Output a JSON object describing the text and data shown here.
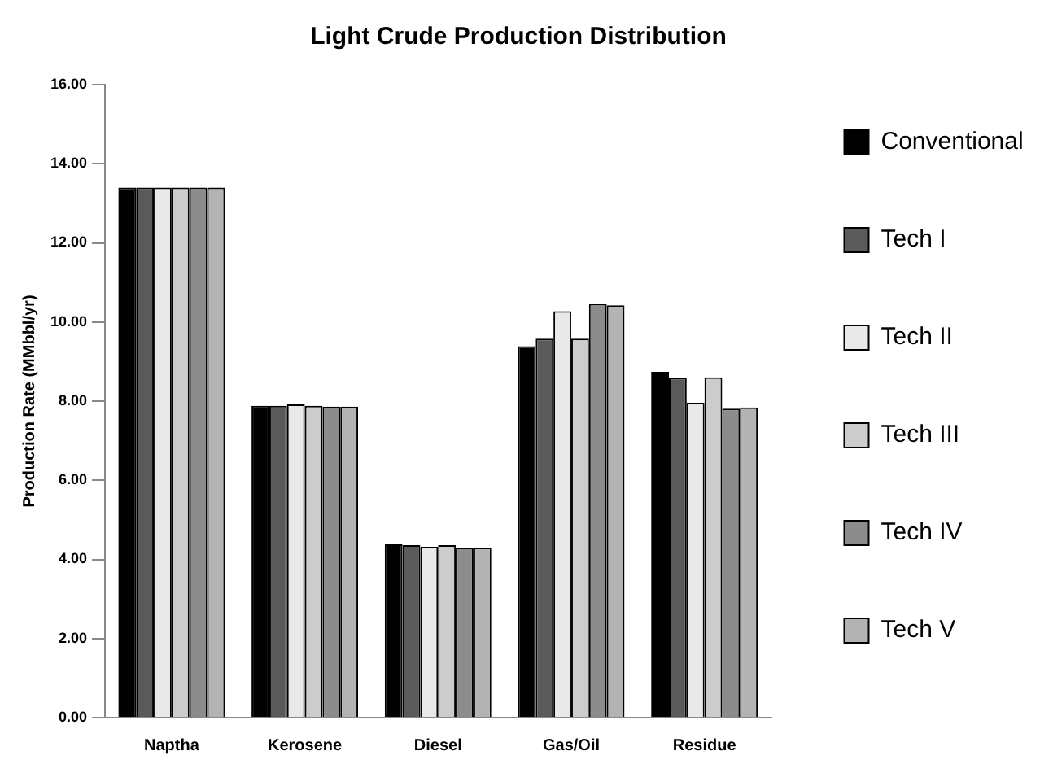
{
  "chart_data": {
    "type": "bar",
    "title": "Light Crude Production Distribution",
    "ylabel": "Production Rate (MMbbl/yr)",
    "categories": [
      "Naptha",
      "Kerosene",
      "Diesel",
      "Gas/Oil",
      "Residue"
    ],
    "series": [
      {
        "name": "Conventional",
        "color": "#000000",
        "values": [
          13.4,
          7.88,
          4.38,
          9.39,
          8.74
        ]
      },
      {
        "name": "Tech I",
        "color": "#5a5a5a",
        "values": [
          13.4,
          7.88,
          4.36,
          9.58,
          8.59
        ]
      },
      {
        "name": "Tech II",
        "color": "#e9e9e9",
        "values": [
          13.4,
          7.92,
          4.32,
          10.27,
          7.96
        ]
      },
      {
        "name": "Tech III",
        "color": "#cccccc",
        "values": [
          13.4,
          7.88,
          4.36,
          9.58,
          8.6
        ]
      },
      {
        "name": "Tech IV",
        "color": "#8c8c8c",
        "values": [
          13.4,
          7.86,
          4.3,
          10.46,
          7.81
        ]
      },
      {
        "name": "Tech V",
        "color": "#b3b3b3",
        "values": [
          13.4,
          7.86,
          4.3,
          10.42,
          7.84
        ]
      }
    ],
    "ylim": [
      0,
      16
    ],
    "yticks": [
      {
        "value": 0,
        "label": "0.00"
      },
      {
        "value": 2,
        "label": "2.00"
      },
      {
        "value": 4,
        "label": "4.00"
      },
      {
        "value": 6,
        "label": "6.00"
      },
      {
        "value": 8,
        "label": "8.00"
      },
      {
        "value": 10,
        "label": "10.00"
      },
      {
        "value": 12,
        "label": "12.00"
      },
      {
        "value": 14,
        "label": "14.00"
      },
      {
        "value": 16,
        "label": "16.00"
      }
    ],
    "grid": false,
    "legend": "right"
  }
}
